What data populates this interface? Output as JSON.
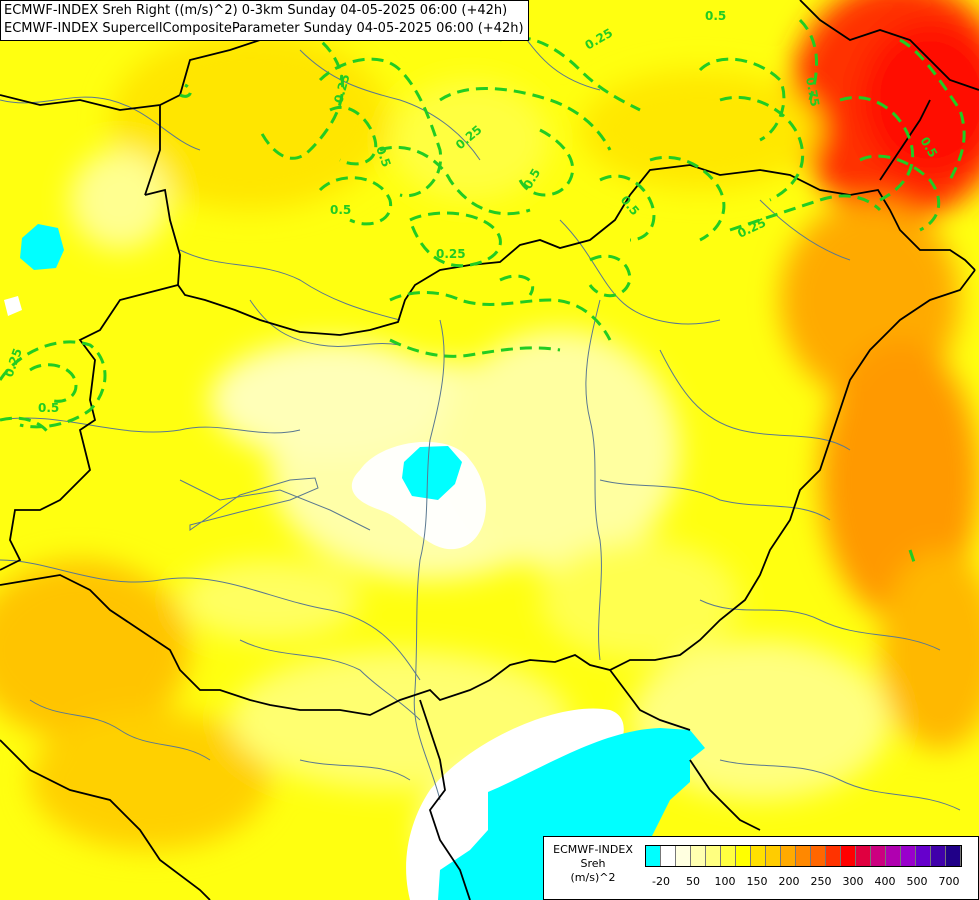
{
  "header": {
    "line1": "ECMWF-INDEX Sreh Right ((m/s)^2) 0-3km Sunday 04-05-2025 06:00 (+42h)",
    "line2": "ECMWF-INDEX SupercellCompositeParameter Sunday 04-05-2025 06:00 (+42h)"
  },
  "legend": {
    "title_line1": "ECMWF-INDEX",
    "title_line2": "Sreh",
    "title_line3": "(m/s)^2",
    "labels": [
      "-20",
      "50",
      "100",
      "150",
      "200",
      "250",
      "300",
      "400",
      "500",
      "700"
    ],
    "colors": [
      "#00ffff",
      "#ffffff",
      "#ffffe0",
      "#ffffb0",
      "#ffff80",
      "#ffff40",
      "#ffff00",
      "#ffe000",
      "#ffcc00",
      "#ffaa00",
      "#ff8800",
      "#ff6600",
      "#ff3300",
      "#ff0000",
      "#e00040",
      "#cc0080",
      "#b000b0",
      "#9900cc",
      "#6600cc",
      "#4000aa",
      "#200088"
    ]
  },
  "contour_labels": [
    "0.25",
    "0.5",
    "0.25",
    "0.5",
    "0.5",
    "0.25",
    "0.75",
    "0.5",
    "0.5",
    "0.25",
    "0.25",
    "0.5",
    "0.25",
    "0.5"
  ],
  "colors": {
    "contour": "#22cc22",
    "border": "#000000",
    "river": "#5a7890"
  }
}
